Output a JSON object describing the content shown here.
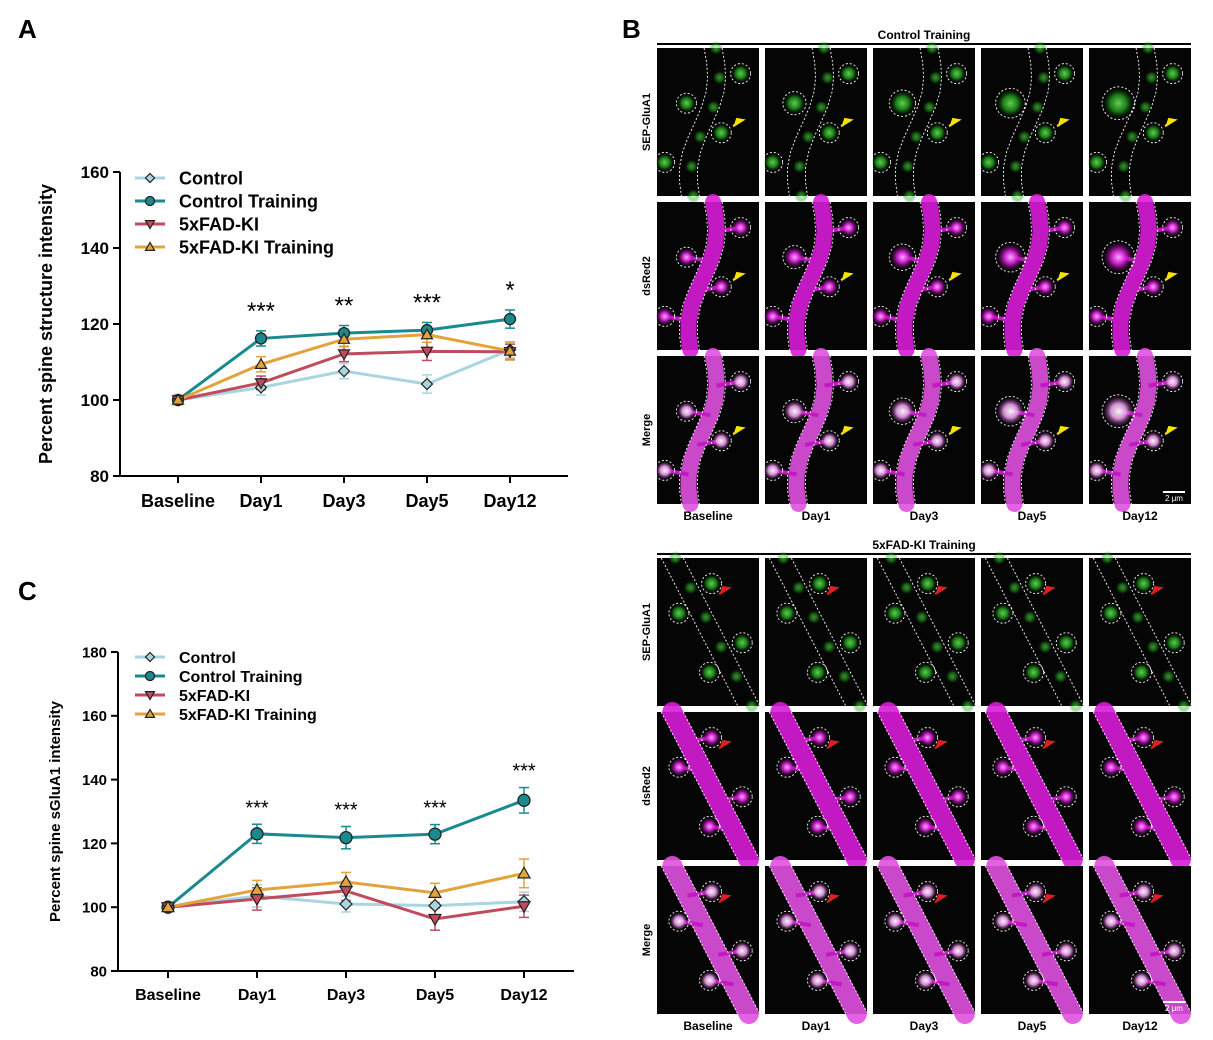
{
  "panel_labels": {
    "a": "A",
    "b": "B",
    "c": "C"
  },
  "chart_data": [
    {
      "type": "line",
      "panel": "A",
      "title": "",
      "xlabel": "",
      "ylabel": "Percent spine structure intensity",
      "categories": [
        "Baseline",
        "Day1",
        "Day3",
        "Day5",
        "Day12"
      ],
      "ylim": [
        80,
        160
      ],
      "yticks": [
        80,
        100,
        120,
        140,
        160
      ],
      "grid": false,
      "legend": "top-left",
      "series": [
        {
          "name": "Control",
          "color": "#a8d5e0",
          "marker": "diamond",
          "values": [
            100,
            103.3,
            107.6,
            104.2,
            113.2
          ],
          "err": [
            1.2,
            2.0,
            2.0,
            2.4,
            2.0
          ]
        },
        {
          "name": "Control Training",
          "color": "#1a8a8f",
          "marker": "circle",
          "values": [
            100,
            116.2,
            117.6,
            118.4,
            121.3
          ],
          "err": [
            1.2,
            2.0,
            2.0,
            2.0,
            2.4
          ]
        },
        {
          "name": "5xFAD-KI",
          "color": "#c04a5e",
          "marker": "triangle-down",
          "values": [
            100,
            104.5,
            112.1,
            112.8,
            112.7
          ],
          "err": [
            1.2,
            1.8,
            2.0,
            2.4,
            2.0
          ]
        },
        {
          "name": "5xFAD-KI Training",
          "color": "#e3a33c",
          "marker": "triangle-up",
          "values": [
            100,
            109.4,
            116.0,
            117.2,
            112.9
          ],
          "err": [
            1.2,
            2.0,
            2.0,
            2.0,
            2.4
          ]
        }
      ],
      "annotations": [
        {
          "x": "Day1",
          "text": "***"
        },
        {
          "x": "Day3",
          "text": "**"
        },
        {
          "x": "Day5",
          "text": "***"
        },
        {
          "x": "Day12",
          "text": "*"
        }
      ]
    },
    {
      "type": "line",
      "panel": "C",
      "title": "",
      "xlabel": "",
      "ylabel": "Percent spine sGluA1 intensity",
      "categories": [
        "Baseline",
        "Day1",
        "Day3",
        "Day5",
        "Day12"
      ],
      "ylim": [
        80,
        180
      ],
      "yticks": [
        80,
        100,
        120,
        140,
        160,
        180
      ],
      "grid": false,
      "legend": "top-left",
      "series": [
        {
          "name": "Control",
          "color": "#a8d5e0",
          "marker": "diamond",
          "values": [
            100,
            103.5,
            101.0,
            100.5,
            101.7
          ],
          "err": [
            1.0,
            3.5,
            2.5,
            3.0,
            3.0
          ]
        },
        {
          "name": "Control Training",
          "color": "#1a8a8f",
          "marker": "circle",
          "values": [
            100,
            123.0,
            121.8,
            122.9,
            133.5
          ],
          "err": [
            1.0,
            3.0,
            3.5,
            3.0,
            4.0
          ]
        },
        {
          "name": "5xFAD-KI",
          "color": "#c04a5e",
          "marker": "triangle-down",
          "values": [
            100,
            102.6,
            105.1,
            96.3,
            100.3
          ],
          "err": [
            1.0,
            3.5,
            3.0,
            3.5,
            3.5
          ]
        },
        {
          "name": "5xFAD-KI Training",
          "color": "#e3a33c",
          "marker": "triangle-up",
          "values": [
            100,
            105.4,
            107.9,
            104.5,
            110.6
          ],
          "err": [
            1.0,
            3.0,
            3.0,
            3.0,
            4.5
          ]
        }
      ],
      "annotations": [
        {
          "x": "Day1",
          "text": "***"
        },
        {
          "x": "Day3",
          "text": "***"
        },
        {
          "x": "Day5",
          "text": "***"
        },
        {
          "x": "Day12",
          "text": "***"
        }
      ]
    }
  ],
  "micrographs": [
    {
      "title": "Control Training",
      "rows": [
        "SEP-GluA1",
        "dsRed2",
        "Merge"
      ],
      "columns": [
        "Baseline",
        "Day1",
        "Day3",
        "Day5",
        "Day12"
      ],
      "scale_bar": "2 μm",
      "arrow_color": "#f5e400"
    },
    {
      "title": "5xFAD-KI Training",
      "rows": [
        "SEP-GluA1",
        "dsRed2",
        "Merge"
      ],
      "columns": [
        "Baseline",
        "Day1",
        "Day3",
        "Day5",
        "Day12"
      ],
      "scale_bar": "2 μm",
      "arrow_color": "#e02020"
    }
  ]
}
